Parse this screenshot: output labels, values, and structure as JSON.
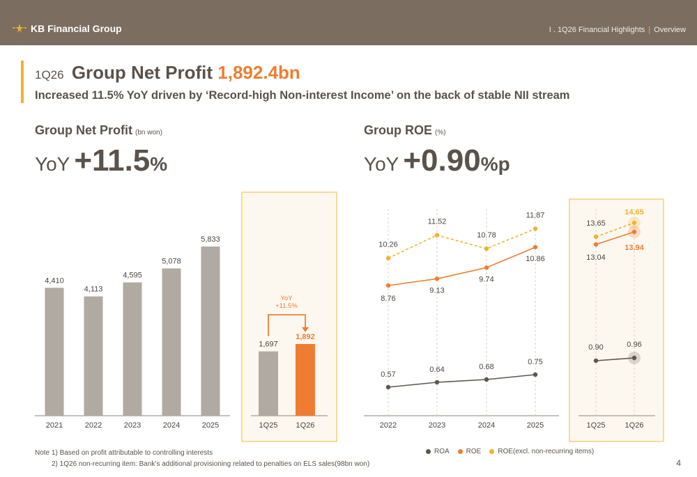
{
  "header": {
    "logo_text": "KB Financial Group",
    "breadcrumb_section": "I . 1Q26 Financial Highlights",
    "breadcrumb_page": "Overview",
    "bar_color": "#7b6e61"
  },
  "headline": {
    "period": "1Q26",
    "title": "Group Net Profit",
    "value": "1,892.4bn",
    "subtitle": "Increased 11.5% YoY driven by ‘Record-high Non-interest Income’ on the back of stable NII stream"
  },
  "left_section": {
    "title": "Group Net Profit",
    "unit": "(bn won)",
    "big_lead": "YoY",
    "big_value": "+11.5",
    "big_suffix": "%"
  },
  "right_section": {
    "title": "Group ROE",
    "unit": "(%)",
    "big_lead": "YoY",
    "big_value": "+0.90",
    "big_suffix": "%p"
  },
  "colors": {
    "bar_grey": "#b0aaa3",
    "orange": "#ef7d31",
    "yellow": "#f1b32b",
    "dark": "#5f5550",
    "highlight_bg": "#fdf8ef",
    "highlight_border": "#f3cf7f"
  },
  "chart_data": [
    {
      "type": "bar",
      "title": "Group Net Profit",
      "unit": "bn won",
      "categories": [
        "2021",
        "2022",
        "2023",
        "2024",
        "2025"
      ],
      "values": [
        4410,
        4113,
        4595,
        5078,
        5833
      ],
      "labels": [
        "4,410",
        "4,113",
        "4,595",
        "5,078",
        "5,833"
      ],
      "ylim": [
        0,
        7000
      ]
    },
    {
      "type": "bar",
      "categories": [
        "1Q25",
        "1Q26"
      ],
      "values": [
        1697,
        1892
      ],
      "labels": [
        "1,697",
        "1,892"
      ],
      "annotation": {
        "line1": "YoY",
        "line2": "+11.5%"
      },
      "ylim": [
        0,
        2300
      ]
    },
    {
      "type": "line",
      "title": "Group ROE",
      "unit": "%",
      "categories": [
        "2022",
        "2023",
        "2024",
        "2025"
      ],
      "series": [
        {
          "name": "ROE(excl. non-recurring items)",
          "values": [
            10.26,
            11.52,
            10.78,
            11.87
          ],
          "labels": [
            "10.26",
            "11.52",
            "10.78",
            "11.87"
          ]
        },
        {
          "name": "ROE",
          "values": [
            8.76,
            9.13,
            9.74,
            10.86
          ],
          "labels": [
            "8.76",
            "9.13",
            "9.74",
            "10.86"
          ]
        },
        {
          "name": "ROA",
          "values": [
            0.57,
            0.64,
            0.68,
            0.75
          ],
          "labels": [
            "0.57",
            "0.64",
            "0.68",
            "0.75"
          ]
        }
      ]
    },
    {
      "type": "line",
      "categories": [
        "1Q25",
        "1Q26"
      ],
      "series": [
        {
          "name": "ROE(excl. non-recurring items)",
          "values": [
            13.65,
            14.65
          ],
          "labels": [
            "13.65",
            "14.65"
          ]
        },
        {
          "name": "ROE",
          "values": [
            13.04,
            13.94
          ],
          "labels": [
            "13.04",
            "13.94"
          ]
        },
        {
          "name": "ROA",
          "values": [
            0.9,
            0.96
          ],
          "labels": [
            "0.90",
            "0.96"
          ]
        }
      ]
    }
  ],
  "legend": [
    "ROA",
    "ROE",
    "ROE(excl. non-recurring items)"
  ],
  "notes": {
    "note1": "Note 1) Based on profit attributable to controlling interests",
    "note2": "2) 1Q26 non-recurring item: Bank’s additional provisioning related to penalties on ELS sales(98bn won)"
  },
  "page_number": "4"
}
